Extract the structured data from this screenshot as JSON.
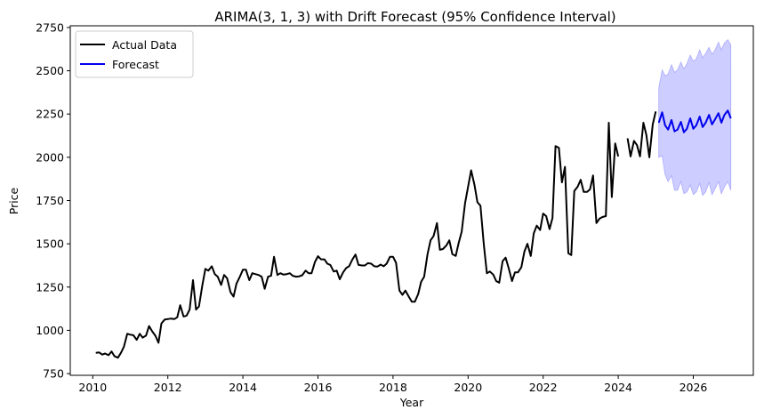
{
  "chart_data": {
    "type": "line",
    "title": "ARIMA(3, 1, 3) with Drift Forecast (95% Confidence Interval)",
    "xlabel": "Year",
    "ylabel": "Price",
    "xlim": [
      2009.4,
      2027.6
    ],
    "ylim": [
      740,
      2760
    ],
    "x_ticks": [
      2010,
      2012,
      2014,
      2016,
      2018,
      2020,
      2022,
      2024,
      2026
    ],
    "y_ticks": [
      750,
      1000,
      1250,
      1500,
      1750,
      2000,
      2250,
      2500,
      2750
    ],
    "grid": false,
    "legend": {
      "placement": "top-left",
      "entries": [
        "Actual Data",
        "Forecast"
      ]
    },
    "colors": {
      "actual": "#000000",
      "forecast": "#0000ee",
      "interval": "#c8c8ff"
    },
    "series": [
      {
        "name": "Actual Data",
        "segments": [
          [
            [
              2010.08,
              870
            ],
            [
              2010.17,
              872
            ],
            [
              2010.25,
              860
            ],
            [
              2010.33,
              866
            ],
            [
              2010.42,
              856
            ],
            [
              2010.5,
              878
            ],
            [
              2010.58,
              850
            ],
            [
              2010.67,
              842
            ],
            [
              2010.75,
              870
            ],
            [
              2010.83,
              905
            ],
            [
              2010.92,
              980
            ],
            [
              2011.0,
              975
            ],
            [
              2011.08,
              972
            ],
            [
              2011.17,
              945
            ],
            [
              2011.25,
              980
            ],
            [
              2011.33,
              958
            ],
            [
              2011.42,
              970
            ],
            [
              2011.5,
              1025
            ],
            [
              2011.58,
              995
            ],
            [
              2011.67,
              968
            ],
            [
              2011.75,
              928
            ],
            [
              2011.83,
              1040
            ],
            [
              2011.92,
              1063
            ],
            [
              2012.0,
              1065
            ],
            [
              2012.08,
              1068
            ],
            [
              2012.17,
              1065
            ],
            [
              2012.25,
              1075
            ],
            [
              2012.33,
              1145
            ],
            [
              2012.42,
              1080
            ],
            [
              2012.5,
              1085
            ],
            [
              2012.58,
              1120
            ],
            [
              2012.67,
              1290
            ],
            [
              2012.75,
              1120
            ],
            [
              2012.83,
              1138
            ],
            [
              2012.92,
              1260
            ],
            [
              2013.0,
              1355
            ],
            [
              2013.08,
              1345
            ],
            [
              2013.17,
              1370
            ],
            [
              2013.25,
              1325
            ],
            [
              2013.33,
              1310
            ],
            [
              2013.42,
              1262
            ],
            [
              2013.5,
              1320
            ],
            [
              2013.58,
              1300
            ],
            [
              2013.67,
              1220
            ],
            [
              2013.75,
              1195
            ],
            [
              2013.83,
              1270
            ],
            [
              2013.92,
              1310
            ],
            [
              2014.0,
              1350
            ],
            [
              2014.08,
              1350
            ],
            [
              2014.17,
              1290
            ],
            [
              2014.25,
              1330
            ],
            [
              2014.33,
              1325
            ],
            [
              2014.42,
              1320
            ],
            [
              2014.5,
              1310
            ],
            [
              2014.58,
              1240
            ],
            [
              2014.67,
              1310
            ],
            [
              2014.75,
              1315
            ],
            [
              2014.83,
              1425
            ],
            [
              2014.92,
              1320
            ],
            [
              2015.0,
              1330
            ],
            [
              2015.08,
              1322
            ],
            [
              2015.17,
              1325
            ],
            [
              2015.25,
              1330
            ],
            [
              2015.33,
              1315
            ],
            [
              2015.42,
              1310
            ],
            [
              2015.5,
              1312
            ],
            [
              2015.58,
              1318
            ],
            [
              2015.67,
              1345
            ],
            [
              2015.75,
              1330
            ],
            [
              2015.83,
              1330
            ],
            [
              2015.92,
              1395
            ],
            [
              2016.0,
              1428
            ],
            [
              2016.08,
              1410
            ],
            [
              2016.17,
              1410
            ],
            [
              2016.25,
              1385
            ],
            [
              2016.33,
              1378
            ],
            [
              2016.42,
              1340
            ],
            [
              2016.5,
              1345
            ],
            [
              2016.58,
              1295
            ],
            [
              2016.67,
              1335
            ],
            [
              2016.75,
              1360
            ],
            [
              2016.83,
              1370
            ],
            [
              2016.92,
              1410
            ],
            [
              2017.0,
              1438
            ],
            [
              2017.08,
              1378
            ],
            [
              2017.17,
              1375
            ],
            [
              2017.25,
              1375
            ],
            [
              2017.33,
              1388
            ],
            [
              2017.42,
              1385
            ],
            [
              2017.5,
              1370
            ],
            [
              2017.58,
              1368
            ],
            [
              2017.67,
              1380
            ],
            [
              2017.75,
              1370
            ],
            [
              2017.83,
              1385
            ],
            [
              2017.92,
              1425
            ],
            [
              2018.0,
              1425
            ],
            [
              2018.08,
              1390
            ],
            [
              2018.17,
              1230
            ],
            [
              2018.25,
              1205
            ],
            [
              2018.33,
              1230
            ],
            [
              2018.42,
              1195
            ],
            [
              2018.5,
              1165
            ],
            [
              2018.58,
              1165
            ],
            [
              2018.67,
              1210
            ],
            [
              2018.75,
              1280
            ],
            [
              2018.83,
              1310
            ],
            [
              2018.92,
              1440
            ],
            [
              2019.0,
              1520
            ],
            [
              2019.08,
              1545
            ],
            [
              2019.17,
              1620
            ],
            [
              2019.25,
              1465
            ],
            [
              2019.33,
              1470
            ],
            [
              2019.42,
              1490
            ],
            [
              2019.5,
              1520
            ],
            [
              2019.58,
              1440
            ],
            [
              2019.67,
              1430
            ],
            [
              2019.75,
              1505
            ],
            [
              2019.83,
              1570
            ],
            [
              2019.92,
              1735
            ],
            [
              2020.0,
              1830
            ],
            [
              2020.08,
              1925
            ],
            [
              2020.17,
              1840
            ],
            [
              2020.25,
              1740
            ],
            [
              2020.33,
              1720
            ],
            [
              2020.42,
              1495
            ],
            [
              2020.5,
              1330
            ],
            [
              2020.58,
              1340
            ],
            [
              2020.67,
              1322
            ],
            [
              2020.75,
              1285
            ],
            [
              2020.83,
              1275
            ],
            [
              2020.92,
              1400
            ],
            [
              2021.0,
              1420
            ],
            [
              2021.08,
              1360
            ],
            [
              2021.17,
              1285
            ],
            [
              2021.25,
              1335
            ],
            [
              2021.33,
              1335
            ],
            [
              2021.42,
              1365
            ],
            [
              2021.5,
              1455
            ],
            [
              2021.58,
              1500
            ],
            [
              2021.67,
              1430
            ],
            [
              2021.75,
              1560
            ],
            [
              2021.83,
              1605
            ],
            [
              2021.92,
              1580
            ],
            [
              2022.0,
              1675
            ],
            [
              2022.08,
              1660
            ],
            [
              2022.17,
              1585
            ],
            [
              2022.25,
              1650
            ],
            [
              2022.33,
              2065
            ],
            [
              2022.42,
              2055
            ],
            [
              2022.5,
              1855
            ],
            [
              2022.58,
              1945
            ],
            [
              2022.67,
              1445
            ],
            [
              2022.75,
              1435
            ],
            [
              2022.83,
              1805
            ],
            [
              2022.92,
              1830
            ],
            [
              2023.0,
              1870
            ],
            [
              2023.08,
              1800
            ],
            [
              2023.17,
              1800
            ],
            [
              2023.25,
              1815
            ],
            [
              2023.33,
              1895
            ],
            [
              2023.42,
              1620
            ],
            [
              2023.5,
              1645
            ],
            [
              2023.58,
              1655
            ],
            [
              2023.67,
              1660
            ],
            [
              2023.75,
              2200
            ],
            [
              2023.83,
              1770
            ],
            [
              2023.92,
              2080
            ],
            [
              2024.0,
              2005
            ]
          ],
          [
            [
              2024.25,
              2110
            ],
            [
              2024.33,
              2005
            ],
            [
              2024.42,
              2095
            ],
            [
              2024.5,
              2070
            ],
            [
              2024.58,
              2005
            ],
            [
              2024.67,
              2200
            ],
            [
              2024.75,
              2130
            ],
            [
              2024.83,
              2000
            ],
            [
              2024.92,
              2190
            ],
            [
              2025.0,
              2265
            ]
          ]
        ]
      },
      {
        "name": "Forecast",
        "points": [
          [
            2025.08,
            2200
          ],
          [
            2025.17,
            2260
          ],
          [
            2025.25,
            2185
          ],
          [
            2025.33,
            2160
          ],
          [
            2025.42,
            2215
          ],
          [
            2025.5,
            2150
          ],
          [
            2025.58,
            2160
          ],
          [
            2025.67,
            2205
          ],
          [
            2025.75,
            2145
          ],
          [
            2025.83,
            2165
          ],
          [
            2025.92,
            2225
          ],
          [
            2026.0,
            2165
          ],
          [
            2026.08,
            2185
          ],
          [
            2026.17,
            2235
          ],
          [
            2026.25,
            2175
          ],
          [
            2026.33,
            2200
          ],
          [
            2026.42,
            2245
          ],
          [
            2026.5,
            2190
          ],
          [
            2026.58,
            2220
          ],
          [
            2026.67,
            2255
          ],
          [
            2026.75,
            2200
          ],
          [
            2026.83,
            2245
          ],
          [
            2026.92,
            2270
          ],
          [
            2027.0,
            2225
          ]
        ]
      }
    ],
    "confidence_interval": {
      "x": [
        2025.08,
        2025.17,
        2025.25,
        2025.33,
        2025.42,
        2025.5,
        2025.58,
        2025.67,
        2025.75,
        2025.83,
        2025.92,
        2026.0,
        2026.08,
        2026.17,
        2026.25,
        2026.33,
        2026.42,
        2026.5,
        2026.58,
        2026.67,
        2026.75,
        2026.83,
        2026.92,
        2027.0
      ],
      "upper": [
        2400,
        2505,
        2470,
        2480,
        2535,
        2490,
        2505,
        2550,
        2510,
        2540,
        2590,
        2555,
        2570,
        2620,
        2575,
        2600,
        2635,
        2595,
        2620,
        2665,
        2620,
        2660,
        2680,
        2650
      ],
      "lower": [
        2000,
        2010,
        1900,
        1860,
        1895,
        1810,
        1810,
        1860,
        1790,
        1800,
        1840,
        1785,
        1800,
        1850,
        1780,
        1800,
        1855,
        1785,
        1820,
        1860,
        1790,
        1830,
        1860,
        1810
      ]
    }
  }
}
